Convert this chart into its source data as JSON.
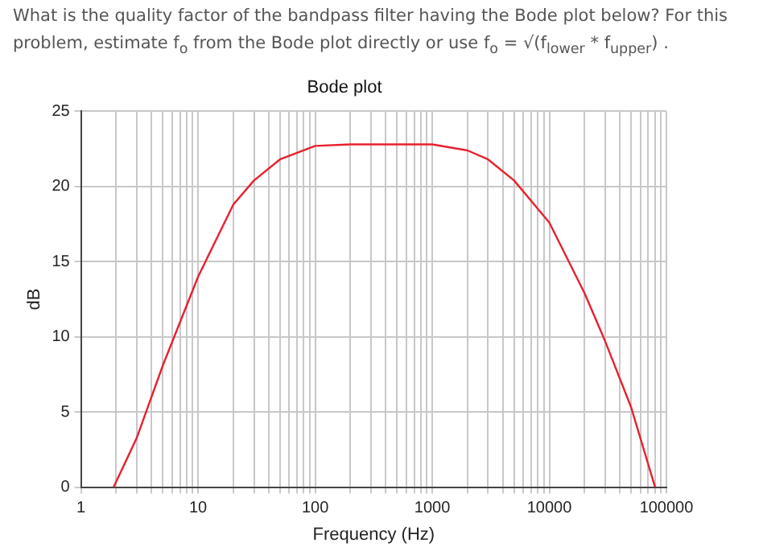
{
  "chart_data": {
    "type": "line",
    "title": "Bode plot",
    "xlabel": "Frequency (Hz)",
    "ylabel": "dB",
    "annotations": [
      "What is the quality factor of the bandpass filter having the Bode plot below? For this problem, estimate f$_{o}$ from the Bode plot directly or use f$_{o}$ = √(f$_{lower}$ * f$_{upper}$) ."
    ],
    "x": [
      1.9,
      3,
      5,
      10,
      20,
      30,
      50,
      100,
      200,
      1000,
      2000,
      3000,
      5000,
      10000,
      20000,
      30000,
      50000,
      80000
    ],
    "series": [
      {
        "color": "#e8212e",
        "values": [
          0,
          3.3,
          8.1,
          14,
          18.8,
          20.4,
          21.8,
          22.7,
          22.8,
          22.8,
          22.4,
          21.8,
          20.4,
          17.6,
          12.9,
          9.7,
          5.3,
          0
        ]
      }
    ],
    "log": "x",
    "xlim": [
      1,
      100000
    ],
    "xticks": [
      1,
      {
        "value": 2,
        "label": null
      },
      {
        "value": 3,
        "label": null
      },
      {
        "value": 4,
        "label": null
      },
      {
        "value": 5,
        "label": null
      },
      {
        "value": 6,
        "label": null
      },
      {
        "value": 7,
        "label": null
      },
      {
        "value": 8,
        "label": null
      },
      {
        "value": 9,
        "label": null
      },
      10,
      {
        "value": 20,
        "label": null
      },
      {
        "value": 30,
        "label": null
      },
      {
        "value": 40,
        "label": null
      },
      {
        "value": 50,
        "label": null
      },
      {
        "value": 60,
        "label": null
      },
      {
        "value": 70,
        "label": null
      },
      {
        "value": 80,
        "label": null
      },
      {
        "value": 90,
        "label": null
      },
      100,
      {
        "value": 200,
        "label": null
      },
      {
        "value": 300,
        "label": null
      },
      {
        "value": 400,
        "label": null
      },
      {
        "value": 500,
        "label": null
      },
      {
        "value": 600,
        "label": null
      },
      {
        "value": 700,
        "label": null
      },
      {
        "value": 800,
        "label": null
      },
      {
        "value": 900,
        "label": null
      },
      1000,
      {
        "value": 2000,
        "label": null
      },
      {
        "value": 3000,
        "label": null
      },
      {
        "value": 4000,
        "label": null
      },
      {
        "value": 5000,
        "label": null
      },
      {
        "value": 6000,
        "label": null
      },
      {
        "value": 7000,
        "label": null
      },
      {
        "value": 8000,
        "label": null
      },
      {
        "value": 9000,
        "label": null
      },
      10000,
      {
        "value": 20000,
        "label": null
      },
      {
        "value": 30000,
        "label": null
      },
      {
        "value": 40000,
        "label": null
      },
      {
        "value": 50000,
        "label": null
      },
      {
        "value": 60000,
        "label": null
      },
      {
        "value": 70000,
        "label": null
      },
      {
        "value": 80000,
        "label": null
      },
      {
        "value": 90000,
        "label": null
      },
      100000
    ],
    "ylim": [
      0,
      25
    ],
    "yticks": [
      0,
      5,
      10,
      15,
      20,
      25
    ],
    "grid": true,
    "legend": false,
    "marker": "none",
    "line_style": "solid"
  }
}
